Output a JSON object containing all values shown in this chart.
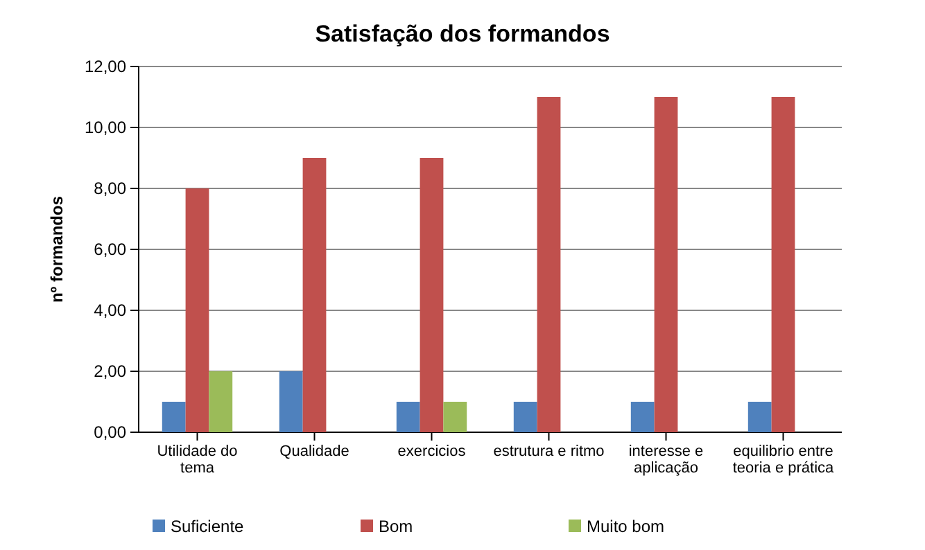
{
  "chart_data": {
    "type": "bar",
    "title": "Satisfação dos formandos",
    "ylabel": "nº formandos",
    "categories": [
      "Utilidade do tema",
      "Qualidade",
      "exercicios",
      "estrutura e ritmo",
      "interesse e aplicação",
      "equilibrio entre teoria e prática"
    ],
    "series": [
      {
        "name": "Suficiente",
        "color": "#4f81bd",
        "values": [
          1,
          2,
          1,
          1,
          1,
          1
        ]
      },
      {
        "name": "Bom",
        "color": "#c0504d",
        "values": [
          8,
          9,
          9,
          11,
          11,
          11
        ]
      },
      {
        "name": "Muito bom",
        "color": "#9bbb59",
        "values": [
          2,
          null,
          1,
          null,
          null,
          null
        ]
      }
    ],
    "ylim": [
      0,
      12
    ],
    "yticks": [
      {
        "value": 0,
        "label": "0,00"
      },
      {
        "value": 2,
        "label": "2,00"
      },
      {
        "value": 4,
        "label": "4,00"
      },
      {
        "value": 6,
        "label": "6,00"
      },
      {
        "value": 8,
        "label": "8,00"
      },
      {
        "value": 10,
        "label": "10,00"
      },
      {
        "value": 12,
        "label": "12,00"
      }
    ],
    "grid": "y",
    "legend": "bottom"
  }
}
